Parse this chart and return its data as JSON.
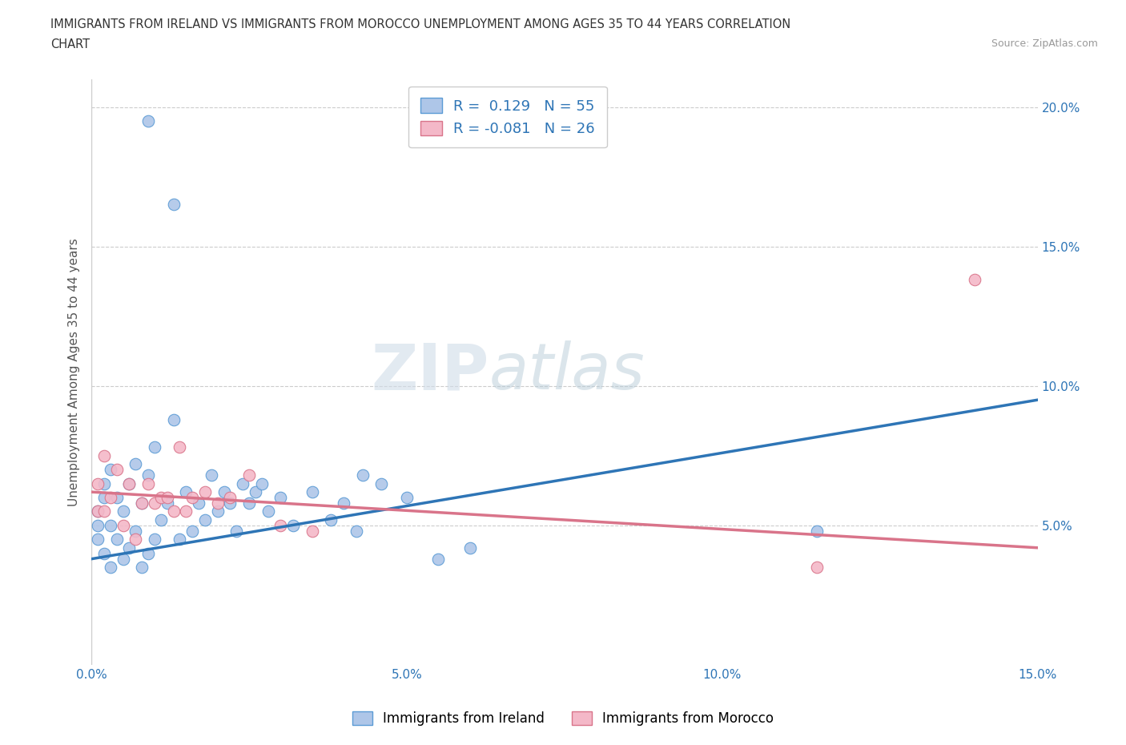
{
  "title_line1": "IMMIGRANTS FROM IRELAND VS IMMIGRANTS FROM MOROCCO UNEMPLOYMENT AMONG AGES 35 TO 44 YEARS CORRELATION",
  "title_line2": "CHART",
  "source": "Source: ZipAtlas.com",
  "ylabel": "Unemployment Among Ages 35 to 44 years",
  "xlim": [
    0.0,
    0.15
  ],
  "ylim": [
    0.0,
    0.21
  ],
  "xticks": [
    0.0,
    0.05,
    0.1,
    0.15
  ],
  "xticklabels": [
    "0.0%",
    "5.0%",
    "10.0%",
    "15.0%"
  ],
  "yticks": [
    0.05,
    0.1,
    0.15,
    0.2
  ],
  "yticklabels": [
    "5.0%",
    "10.0%",
    "15.0%",
    "20.0%"
  ],
  "ireland_color": "#aec6e8",
  "ireland_edge_color": "#5b9bd5",
  "morocco_color": "#f4b8c8",
  "morocco_edge_color": "#d9748a",
  "trend_ireland_color": "#2e75b6",
  "trend_morocco_color": "#d9748a",
  "r_ireland": 0.129,
  "n_ireland": 55,
  "r_morocco": -0.081,
  "n_morocco": 26,
  "legend_r_color": "#2e75b6",
  "trend_ireland_x0": 0.0,
  "trend_ireland_y0": 0.038,
  "trend_ireland_x1": 0.15,
  "trend_ireland_y1": 0.095,
  "trend_morocco_x0": 0.0,
  "trend_morocco_y0": 0.062,
  "trend_morocco_x1": 0.15,
  "trend_morocco_y1": 0.042,
  "ireland_scatter_x": [
    0.001,
    0.001,
    0.001,
    0.002,
    0.002,
    0.002,
    0.003,
    0.003,
    0.003,
    0.004,
    0.004,
    0.005,
    0.005,
    0.006,
    0.006,
    0.007,
    0.007,
    0.008,
    0.008,
    0.009,
    0.009,
    0.01,
    0.01,
    0.011,
    0.012,
    0.013,
    0.014,
    0.015,
    0.016,
    0.017,
    0.018,
    0.019,
    0.02,
    0.021,
    0.022,
    0.023,
    0.024,
    0.025,
    0.026,
    0.027,
    0.028,
    0.03,
    0.032,
    0.035,
    0.038,
    0.04,
    0.042,
    0.043,
    0.046,
    0.05,
    0.055,
    0.06,
    0.013,
    0.009,
    0.115
  ],
  "ireland_scatter_y": [
    0.045,
    0.05,
    0.055,
    0.04,
    0.06,
    0.065,
    0.035,
    0.05,
    0.07,
    0.045,
    0.06,
    0.038,
    0.055,
    0.042,
    0.065,
    0.048,
    0.072,
    0.035,
    0.058,
    0.04,
    0.068,
    0.045,
    0.078,
    0.052,
    0.058,
    0.088,
    0.045,
    0.062,
    0.048,
    0.058,
    0.052,
    0.068,
    0.055,
    0.062,
    0.058,
    0.048,
    0.065,
    0.058,
    0.062,
    0.065,
    0.055,
    0.06,
    0.05,
    0.062,
    0.052,
    0.058,
    0.048,
    0.068,
    0.065,
    0.06,
    0.038,
    0.042,
    0.165,
    0.195,
    0.048
  ],
  "morocco_scatter_x": [
    0.001,
    0.001,
    0.002,
    0.002,
    0.003,
    0.004,
    0.005,
    0.006,
    0.007,
    0.008,
    0.009,
    0.01,
    0.011,
    0.012,
    0.013,
    0.014,
    0.015,
    0.016,
    0.018,
    0.02,
    0.022,
    0.025,
    0.03,
    0.035,
    0.115,
    0.14
  ],
  "morocco_scatter_y": [
    0.055,
    0.065,
    0.055,
    0.075,
    0.06,
    0.07,
    0.05,
    0.065,
    0.045,
    0.058,
    0.065,
    0.058,
    0.06,
    0.06,
    0.055,
    0.078,
    0.055,
    0.06,
    0.062,
    0.058,
    0.06,
    0.068,
    0.05,
    0.048,
    0.035,
    0.138
  ],
  "watermark_zip": "ZIP",
  "watermark_atlas": "atlas",
  "background_color": "#ffffff",
  "grid_color": "#cccccc"
}
